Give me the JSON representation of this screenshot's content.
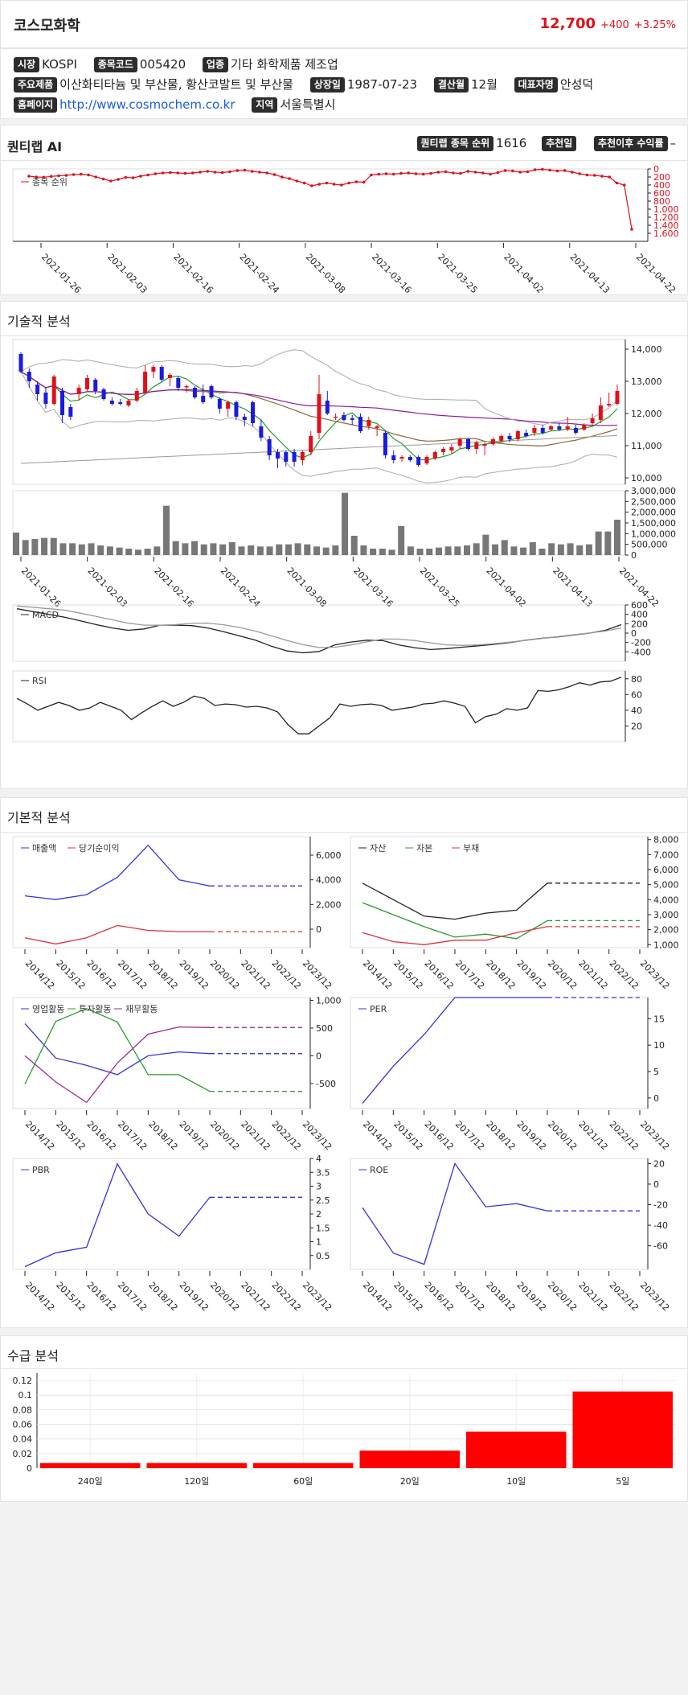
{
  "company": {
    "name": "코스모화학",
    "price": "12,700",
    "change": "+400",
    "change_pct": "+3.25%",
    "up_color": "#e0101a"
  },
  "info": {
    "market_label": "시장",
    "market": "KOSPI",
    "code_label": "종목코드",
    "code": "005420",
    "industry_label": "업종",
    "industry": "기타 화학제품 제조업",
    "products_label": "주요제품",
    "products": "이산화티타늄 및 부산물, 황산코발트 및 부산물",
    "listing_label": "상장일",
    "listing": "1987-07-23",
    "fiscal_label": "결산월",
    "fiscal": "12월",
    "ceo_label": "대표자명",
    "ceo": "안성덕",
    "homepage_label": "홈페이지",
    "homepage": "http://www.cosmochem.co.kr",
    "region_label": "지역",
    "region": "서울특별시"
  },
  "quantilab": {
    "title": "퀀티랩 AI",
    "rank_label": "퀀티랩 종목 순위",
    "rank": "1616",
    "rec_date_label": "추천일",
    "rec_date": "",
    "return_label": "추천이후 수익률",
    "return": "–",
    "legend": "종목 순위"
  },
  "sections": {
    "technical": "기술적 분석",
    "fundamental": "기본적 분석",
    "supply": "수급 분석"
  },
  "dates": [
    "2021-01-26",
    "2021-02-03",
    "2021-02-16",
    "2021-02-24",
    "2021-03-08",
    "2021-03-16",
    "2021-03-25",
    "2021-04-02",
    "2021-04-13",
    "2021-04-22"
  ],
  "years": [
    "2014/12",
    "2015/12",
    "2016/12",
    "2017/12",
    "2018/12",
    "2019/12",
    "2020/12",
    "2021/12",
    "2022/12",
    "2023/12"
  ],
  "chart_data": [
    {
      "type": "line",
      "name": "rank",
      "series": [
        {
          "name": "종목 순위",
          "values": [
            180,
            200,
            205,
            185,
            170,
            160,
            140,
            130,
            150,
            200,
            250,
            300,
            260,
            210,
            220,
            180,
            150,
            120,
            100,
            90,
            100,
            110,
            100,
            80,
            60,
            80,
            90,
            70,
            40,
            30,
            60,
            80,
            100,
            140,
            200,
            240,
            300,
            350,
            420,
            380,
            350,
            380,
            400,
            350,
            320,
            330,
            150,
            130,
            120,
            130,
            110,
            100,
            120,
            130,
            110,
            80,
            70,
            100,
            110,
            60,
            80,
            100,
            130,
            90,
            40,
            50,
            80,
            70,
            20,
            10,
            30,
            50,
            40,
            80,
            120,
            150,
            160,
            180,
            200,
            350,
            400,
            1500
          ]
        }
      ],
      "ylim": [
        1800,
        0
      ],
      "yticks": [
        0,
        200,
        400,
        600,
        800,
        1000,
        1200,
        1400,
        1600
      ]
    },
    {
      "type": "candlestick",
      "name": "price",
      "ylim": [
        9800,
        14300
      ],
      "yticks": [
        10000,
        11000,
        12000,
        13000,
        14000
      ],
      "candles": [
        [
          13850,
          13300,
          13900,
          13250
        ],
        [
          13300,
          13000,
          13400,
          12800
        ],
        [
          12900,
          12600,
          13000,
          12400
        ],
        [
          12650,
          12300,
          12800,
          12150
        ],
        [
          12300,
          13150,
          13200,
          12250
        ],
        [
          12700,
          11950,
          12800,
          11700
        ],
        [
          12200,
          11900,
          12300,
          11800
        ],
        [
          12600,
          12800,
          12900,
          12400
        ],
        [
          12750,
          13100,
          13200,
          12700
        ],
        [
          13050,
          12700,
          13100,
          12600
        ],
        [
          12750,
          12450,
          12800,
          12400
        ],
        [
          12400,
          12300,
          12500,
          12250
        ],
        [
          12350,
          12300,
          12450,
          12250
        ],
        [
          12250,
          12400,
          12450,
          12200
        ],
        [
          12400,
          12700,
          12800,
          12350
        ],
        [
          12650,
          13300,
          13500,
          12600
        ],
        [
          13300,
          13450,
          13500,
          13100
        ],
        [
          13450,
          13050,
          13500,
          13000
        ],
        [
          13100,
          13200,
          13250,
          12850
        ],
        [
          13100,
          12800,
          13150,
          12700
        ],
        [
          12850,
          12850,
          12900,
          12650
        ],
        [
          12800,
          12500,
          12850,
          12450
        ],
        [
          12550,
          12350,
          12900,
          12300
        ],
        [
          12850,
          12500,
          12900,
          12450
        ],
        [
          12450,
          12150,
          12500,
          12000
        ],
        [
          12150,
          12350,
          12400,
          11900
        ],
        [
          12350,
          11900,
          12400,
          11800
        ],
        [
          11900,
          11800,
          12000,
          11600
        ],
        [
          12350,
          11700,
          12400,
          11600
        ],
        [
          11600,
          11250,
          11800,
          11150
        ],
        [
          11200,
          10700,
          11300,
          10550
        ],
        [
          10800,
          10600,
          10900,
          10300
        ],
        [
          10800,
          10500,
          10850,
          10350
        ],
        [
          10800,
          10500,
          10900,
          10350
        ],
        [
          10550,
          10800,
          10850,
          10400
        ],
        [
          10800,
          11300,
          11450,
          10700
        ],
        [
          11400,
          12600,
          13200,
          11200
        ],
        [
          12400,
          12000,
          12700,
          11950
        ],
        [
          11900,
          11900,
          12000,
          11800
        ],
        [
          11950,
          11800,
          12050,
          11750
        ],
        [
          11850,
          11800,
          11950,
          11650
        ],
        [
          11900,
          11450,
          12000,
          11400
        ],
        [
          11600,
          11800,
          11900,
          11500
        ],
        [
          11550,
          11600,
          11650,
          11300
        ],
        [
          11400,
          10700,
          11450,
          10600
        ],
        [
          10700,
          10550,
          10850,
          10450
        ],
        [
          10600,
          10650,
          10700,
          10500
        ],
        [
          10650,
          10550,
          10700,
          10500
        ],
        [
          10650,
          10400,
          10700,
          10350
        ],
        [
          10450,
          10650,
          10700,
          10400
        ],
        [
          10600,
          10800,
          10850,
          10550
        ],
        [
          10800,
          10900,
          10950,
          10700
        ],
        [
          10850,
          10950,
          11050,
          10750
        ],
        [
          11000,
          11200,
          11250,
          10900
        ],
        [
          11200,
          10900,
          11250,
          10850
        ],
        [
          10900,
          11100,
          11150,
          10750
        ],
        [
          11000,
          11050,
          11100,
          10700
        ],
        [
          11050,
          11200,
          11250,
          11000
        ],
        [
          11150,
          11300,
          11350,
          11100
        ],
        [
          11300,
          11200,
          11400,
          11100
        ],
        [
          11200,
          11450,
          11500,
          11150
        ],
        [
          11400,
          11300,
          11500,
          11250
        ],
        [
          11400,
          11550,
          11650,
          11300
        ],
        [
          11550,
          11400,
          11650,
          11350
        ],
        [
          11500,
          11600,
          11650,
          11450
        ],
        [
          11600,
          11500,
          11700,
          11450
        ],
        [
          11500,
          11600,
          11900,
          11450
        ],
        [
          11550,
          11400,
          11650,
          11350
        ],
        [
          11500,
          11650,
          11700,
          11450
        ],
        [
          11700,
          11850,
          12000,
          11650
        ],
        [
          11800,
          12250,
          12500,
          11700
        ],
        [
          12250,
          12300,
          12650,
          12200
        ],
        [
          12300,
          12700,
          12900,
          12250
        ]
      ]
    },
    {
      "type": "bar",
      "name": "volume",
      "ylim": [
        0,
        3000000
      ],
      "yticks": [
        0,
        500000,
        1000000,
        1500000,
        2000000,
        2500000,
        3000000
      ],
      "values": [
        1050000,
        700000,
        750000,
        800000,
        800000,
        550000,
        550000,
        500000,
        550000,
        450000,
        400000,
        350000,
        300000,
        250000,
        300000,
        400000,
        2300000,
        650000,
        550000,
        650000,
        500000,
        550000,
        500000,
        600000,
        400000,
        450000,
        400000,
        400000,
        500000,
        500000,
        550000,
        500000,
        400000,
        350000,
        450000,
        2900000,
        900000,
        450000,
        300000,
        300000,
        250000,
        1350000,
        400000,
        300000,
        300000,
        350000,
        400000,
        400000,
        450000,
        550000,
        950000,
        500000,
        700000,
        400000,
        350000,
        600000,
        300000,
        550000,
        500000,
        550000,
        450000,
        500000,
        1100000,
        1100000,
        1650000
      ]
    },
    {
      "type": "line",
      "name": "macd",
      "series": [
        {
          "name": "MACD",
          "values": [
            520,
            460,
            400,
            340,
            260,
            180,
            110,
            60,
            90,
            170,
            170,
            160,
            110,
            30,
            -60,
            -150,
            -280,
            -380,
            -420,
            -390,
            -250,
            -190,
            -150,
            -160,
            -250,
            -310,
            -350,
            -330,
            -300,
            -270,
            -240,
            -200,
            -150,
            -110,
            -80,
            -40,
            0,
            60,
            180
          ]
        }
      ],
      "ylim": [
        -600,
        600
      ],
      "yticks": [
        -400,
        -200,
        0,
        200,
        400,
        600
      ]
    },
    {
      "type": "line",
      "name": "rsi",
      "series": [
        {
          "name": "RSI",
          "values": [
            55,
            48,
            40,
            45,
            50,
            46,
            40,
            43,
            50,
            45,
            40,
            28,
            37,
            45,
            52,
            45,
            50,
            58,
            55,
            46,
            48,
            47,
            44,
            45,
            43,
            38,
            22,
            10,
            10,
            20,
            30,
            48,
            45,
            47,
            48,
            46,
            40,
            42,
            44,
            48,
            49,
            52,
            49,
            45,
            24,
            32,
            35,
            42,
            40,
            43,
            65,
            64,
            66,
            70,
            75,
            72,
            76,
            77,
            82
          ]
        }
      ],
      "ylim": [
        0,
        90
      ],
      "yticks": [
        20,
        40,
        60,
        80
      ]
    },
    {
      "type": "line",
      "name": "revenue_income",
      "series": [
        {
          "name": "매출액",
          "values": [
            2700,
            2400,
            2800,
            4200,
            6800,
            4000,
            3500,
            3500,
            3500,
            3500
          ]
        },
        {
          "name": "당기순이익",
          "values": [
            -700,
            -1200,
            -700,
            300,
            -100,
            -200,
            -200,
            -200,
            -200,
            -200
          ]
        }
      ],
      "ylim": [
        -1500,
        7500
      ],
      "yticks": [
        0,
        2000,
        4000,
        6000
      ]
    },
    {
      "type": "line",
      "name": "assets",
      "series": [
        {
          "name": "자산",
          "values": [
            5100,
            4000,
            2900,
            2700,
            3100,
            3300,
            5100,
            5100,
            5100,
            5100
          ]
        },
        {
          "name": "자본",
          "values": [
            3800,
            3000,
            2200,
            1500,
            1700,
            1400,
            2600,
            2600,
            2600,
            2600
          ]
        },
        {
          "name": "부채",
          "values": [
            1800,
            1200,
            1000,
            1300,
            1300,
            1800,
            2200,
            2200,
            2200,
            2200
          ]
        }
      ],
      "ylim": [
        800,
        8200
      ],
      "yticks": [
        1000,
        2000,
        3000,
        4000,
        5000,
        6000,
        7000,
        8000
      ]
    },
    {
      "type": "line",
      "name": "cashflow",
      "series": [
        {
          "name": "영업활동",
          "values": [
            580,
            -40,
            -170,
            -340,
            0,
            70,
            40,
            40,
            40,
            40
          ]
        },
        {
          "name": "투자활동",
          "values": [
            -510,
            620,
            850,
            610,
            -340,
            -340,
            -640,
            -640,
            -640,
            -640
          ]
        },
        {
          "name": "재무활동",
          "values": [
            0,
            -470,
            -840,
            -130,
            390,
            520,
            510,
            510,
            510,
            510
          ]
        }
      ],
      "ylim": [
        -950,
        1050
      ],
      "yticks": [
        -500,
        0,
        500,
        1000
      ]
    },
    {
      "type": "line",
      "name": "per",
      "series": [
        {
          "name": "PER",
          "values": [
            -1,
            6,
            12,
            19,
            19,
            19,
            19,
            19,
            19,
            19
          ]
        }
      ],
      "ylim": [
        -2,
        19
      ],
      "yticks": [
        0,
        5,
        10,
        15
      ]
    },
    {
      "type": "line",
      "name": "pbr",
      "series": [
        {
          "name": "PBR",
          "values": [
            0.1,
            0.6,
            0.8,
            3.8,
            2.0,
            1.2,
            2.6,
            2.6,
            2.6,
            2.6
          ]
        }
      ],
      "ylim": [
        0,
        4
      ],
      "yticks": [
        0.5,
        1,
        1.5,
        2,
        2.5,
        3,
        3.5,
        4
      ]
    },
    {
      "type": "line",
      "name": "roe",
      "series": [
        {
          "name": "ROE",
          "values": [
            -23,
            -67,
            -78,
            20,
            -22,
            -19,
            -26,
            -26,
            -26,
            -26
          ]
        }
      ],
      "ylim": [
        -83,
        25
      ],
      "yticks": [
        -60,
        -40,
        -20,
        0,
        20
      ]
    },
    {
      "type": "bar",
      "name": "supply",
      "categories": [
        "240일",
        "120일",
        "60일",
        "20일",
        "10일",
        "5일"
      ],
      "values": [
        0.007,
        0.007,
        0.007,
        0.024,
        0.05,
        0.105
      ],
      "ylim": [
        0,
        0.13
      ],
      "yticks": [
        0,
        0.02,
        0.04,
        0.06,
        0.08,
        0.1,
        0.12
      ]
    }
  ]
}
